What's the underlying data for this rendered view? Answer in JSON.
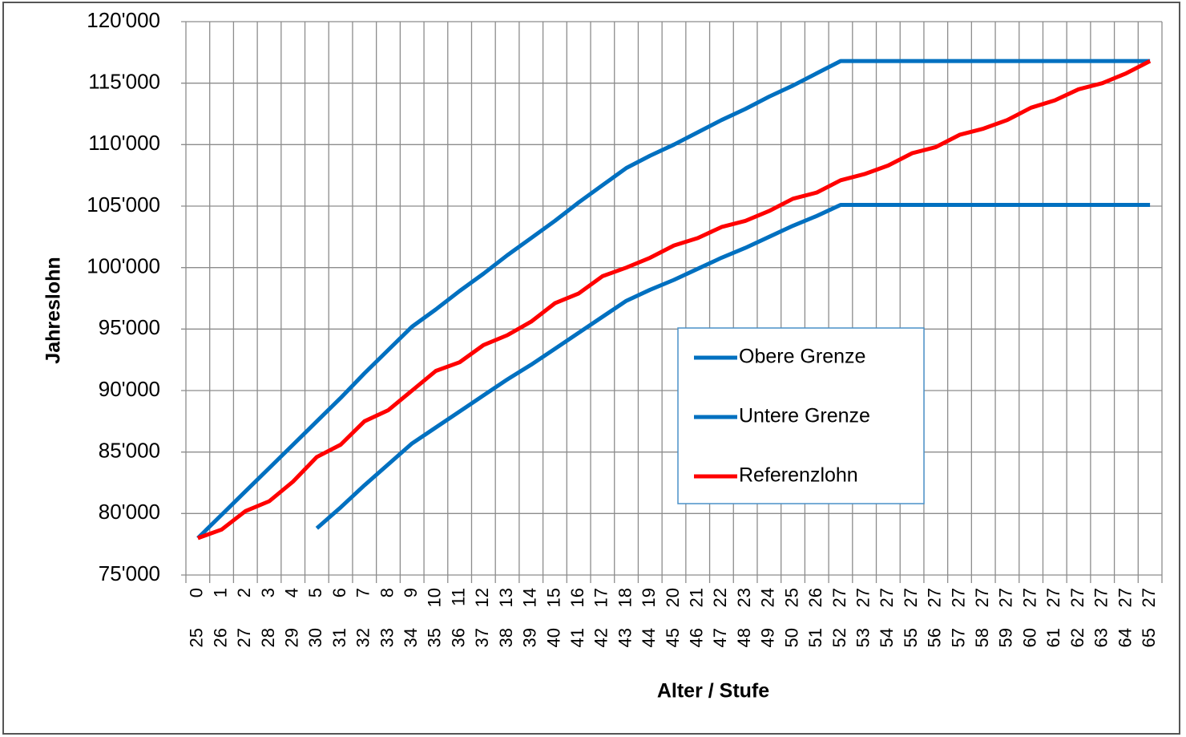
{
  "chart_data": {
    "type": "line",
    "y_axis_label": "Jahreslohn",
    "x_axis_label": "Alter / Stufe",
    "categories": [
      "0",
      "1",
      "2",
      "3",
      "4",
      "5",
      "6",
      "7",
      "8",
      "9",
      "10",
      "11",
      "12",
      "13",
      "14",
      "15",
      "16",
      "17",
      "18",
      "19",
      "20",
      "21",
      "22",
      "23",
      "24",
      "25",
      "26",
      "27",
      "27",
      "27",
      "27",
      "27",
      "27",
      "27",
      "27",
      "27",
      "27",
      "27",
      "27",
      "27",
      "27"
    ],
    "categories_outer": [
      "25",
      "26",
      "27",
      "28",
      "29",
      "30",
      "31",
      "32",
      "33",
      "34",
      "35",
      "36",
      "37",
      "38",
      "39",
      "40",
      "41",
      "42",
      "43",
      "44",
      "45",
      "46",
      "47",
      "48",
      "49",
      "50",
      "51",
      "52",
      "53",
      "54",
      "55",
      "56",
      "57",
      "58",
      "59",
      "60",
      "61",
      "62",
      "63",
      "64",
      "65"
    ],
    "ylim": [
      75000,
      120000
    ],
    "yticks": [
      {
        "value": 75000,
        "label": "75'000"
      },
      {
        "value": 80000,
        "label": "80'000"
      },
      {
        "value": 85000,
        "label": "85'000"
      },
      {
        "value": 90000,
        "label": "90'000"
      },
      {
        "value": 95000,
        "label": "95'000"
      },
      {
        "value": 100000,
        "label": "100'000"
      },
      {
        "value": 105000,
        "label": "105'000"
      },
      {
        "value": 110000,
        "label": "110'000"
      },
      {
        "value": 115000,
        "label": "115'000"
      },
      {
        "value": 120000,
        "label": "120'000"
      }
    ],
    "grid": true,
    "legend": "center-right",
    "series": [
      {
        "name": "Obere Grenze",
        "color": "#0070c0",
        "values": [
          78000,
          79900,
          81800,
          83700,
          85600,
          87500,
          89400,
          91400,
          93300,
          95200,
          96600,
          98100,
          99500,
          101000,
          102400,
          103800,
          105300,
          106700,
          108100,
          109100,
          110000,
          111000,
          112000,
          112900,
          113900,
          114800,
          115800,
          116800,
          116800,
          116800,
          116800,
          116800,
          116800,
          116800,
          116800,
          116800,
          116800,
          116800,
          116800,
          116800,
          116800
        ]
      },
      {
        "name": "Untere Grenze",
        "color": "#0070c0",
        "values": [
          null,
          null,
          null,
          null,
          null,
          78800,
          80500,
          82300,
          84000,
          85700,
          87000,
          88300,
          89600,
          90900,
          92100,
          93400,
          94700,
          96000,
          97300,
          98200,
          99000,
          99900,
          100800,
          101600,
          102500,
          103400,
          104200,
          105100,
          105100,
          105100,
          105100,
          105100,
          105100,
          105100,
          105100,
          105100,
          105100,
          105100,
          105100,
          105100,
          105100
        ]
      },
      {
        "name": "Referenzlohn",
        "color": "#ff0000",
        "values": [
          78000,
          78700,
          80200,
          81000,
          82600,
          84600,
          85600,
          87500,
          88400,
          90000,
          91600,
          92300,
          93700,
          94500,
          95600,
          97100,
          97900,
          99300,
          100000,
          100800,
          101800,
          102400,
          103300,
          103800,
          104600,
          105600,
          106100,
          107100,
          107600,
          108300,
          109300,
          109800,
          110800,
          111300,
          112000,
          113000,
          113600,
          114500,
          115000,
          115800,
          116800
        ]
      }
    ]
  }
}
